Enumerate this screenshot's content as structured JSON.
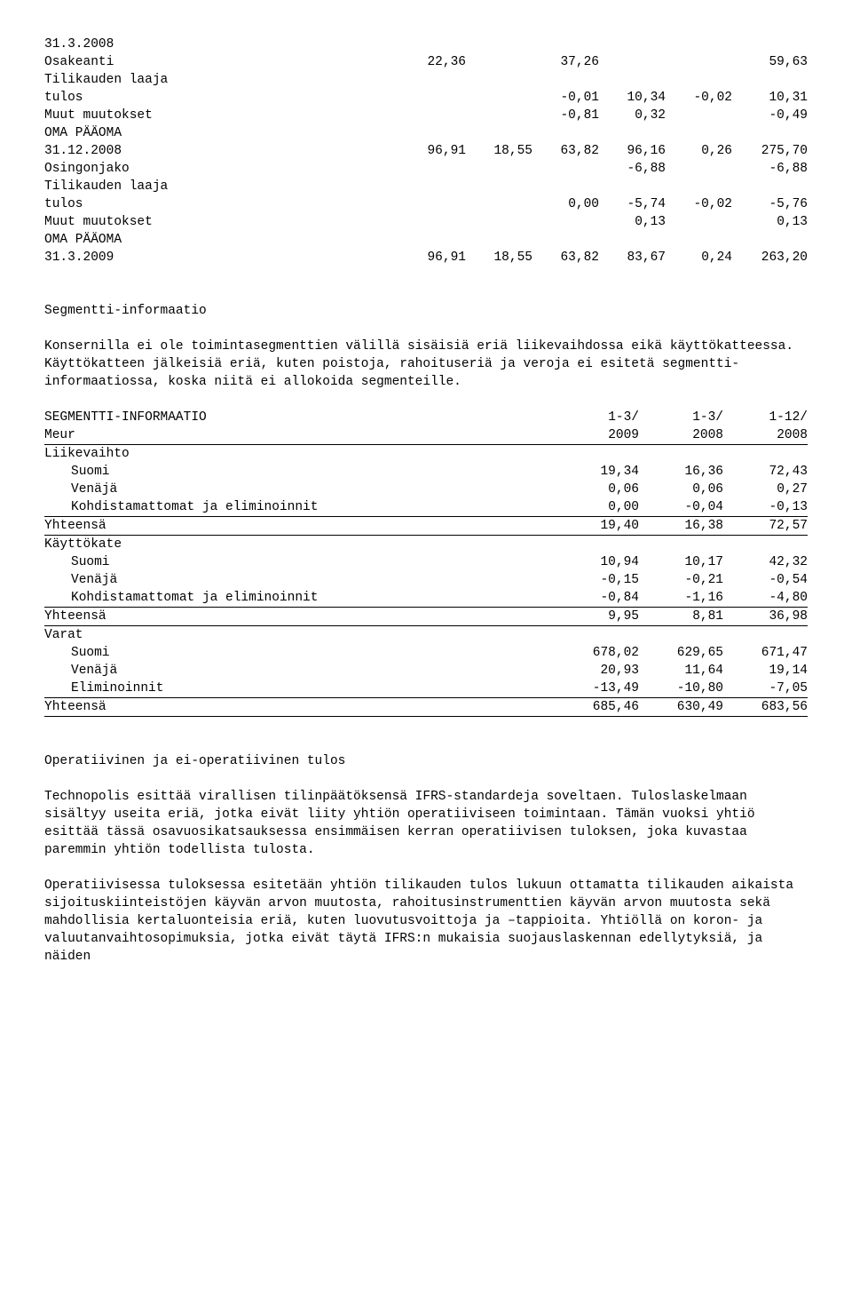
{
  "equity_table": {
    "col_count": 6,
    "rows": [
      {
        "label": "31.3.2008",
        "cells": [
          "",
          "",
          "",
          "",
          "",
          ""
        ]
      },
      {
        "label": "",
        "cells": [
          "",
          "",
          "",
          "",
          "",
          ""
        ]
      },
      {
        "label": "Osakeanti",
        "cells": [
          "22,36",
          "",
          "37,26",
          "",
          "",
          "59,63"
        ]
      },
      {
        "label": "Tilikauden laaja",
        "cells": [
          "",
          "",
          "",
          "",
          "",
          ""
        ]
      },
      {
        "label": "tulos",
        "cells": [
          "",
          "",
          "-0,01",
          "10,34",
          "-0,02",
          "10,31"
        ]
      },
      {
        "label": "Muut muutokset",
        "cells": [
          "",
          "",
          "-0,81",
          "0,32",
          "",
          "-0,49"
        ]
      },
      {
        "label": "OMA PÄÄOMA",
        "cells": [
          "",
          "",
          "",
          "",
          "",
          ""
        ]
      },
      {
        "label": "31.12.2008",
        "cells": [
          "96,91",
          "18,55",
          "63,82",
          "96,16",
          "0,26",
          "275,70"
        ]
      },
      {
        "label": "Osingonjako",
        "cells": [
          "",
          "",
          "",
          "-6,88",
          "",
          "-6,88"
        ]
      },
      {
        "label": "Tilikauden laaja",
        "cells": [
          "",
          "",
          "",
          "",
          "",
          ""
        ]
      },
      {
        "label": "tulos",
        "cells": [
          "",
          "",
          "0,00",
          "-5,74",
          "-0,02",
          "-5,76"
        ]
      },
      {
        "label": "Muut muutokset",
        "cells": [
          "",
          "",
          "",
          "0,13",
          "",
          "0,13"
        ]
      },
      {
        "label": "OMA PÄÄOMA",
        "cells": [
          "",
          "",
          "",
          "",
          "",
          ""
        ]
      },
      {
        "label": "31.3.2009",
        "cells": [
          "96,91",
          "18,55",
          "63,82",
          "83,67",
          "0,24",
          "263,20"
        ]
      }
    ]
  },
  "segment_heading": "Segmentti-informaatio",
  "segment_para": "Konsernilla ei ole toimintasegmenttien välillä sisäisiä eriä liikevaihdossa eikä käyttökatteessa. Käyttökatteen jälkeisiä eriä, kuten poistoja, rahoituseriä ja veroja ei esitetä segmentti-informaatiossa, koska niitä ei allokoida segmenteille.",
  "segment_table": {
    "header_a": {
      "label": " SEGMENTTI-INFORMAATIO",
      "cells": [
        "1-3/",
        "1-3/",
        "1-12/"
      ]
    },
    "header_b": {
      "label": "Meur",
      "cells": [
        "2009",
        "2008",
        "2008"
      ]
    },
    "groups": [
      {
        "title": "Liikevaihto",
        "rows": [
          {
            "label": "Suomi",
            "cells": [
              "19,34",
              "16,36",
              "72,43"
            ],
            "indent": true
          },
          {
            "label": "Venäjä",
            "cells": [
              "0,06",
              "0,06",
              "0,27"
            ],
            "indent": true
          },
          {
            "label": "Kohdistamattomat ja eliminoinnit",
            "cells": [
              "0,00",
              "-0,04",
              "-0,13"
            ],
            "indent": true
          }
        ],
        "total": {
          "label": "Yhteensä",
          "cells": [
            "19,40",
            "16,38",
            "72,57"
          ]
        }
      },
      {
        "title": "Käyttökate",
        "rows": [
          {
            "label": "Suomi",
            "cells": [
              "10,94",
              "10,17",
              "42,32"
            ],
            "indent": true
          },
          {
            "label": "Venäjä",
            "cells": [
              "-0,15",
              "-0,21",
              "-0,54"
            ],
            "indent": true
          },
          {
            "label": "Kohdistamattomat ja eliminoinnit",
            "cells": [
              "-0,84",
              "-1,16",
              "-4,80"
            ],
            "indent": true
          }
        ],
        "total": {
          "label": "Yhteensä",
          "cells": [
            "9,95",
            "8,81",
            "36,98"
          ]
        }
      },
      {
        "title": "Varat",
        "rows": [
          {
            "label": "Suomi",
            "cells": [
              "678,02",
              "629,65",
              "671,47"
            ],
            "indent": true
          },
          {
            "label": "Venäjä",
            "cells": [
              "20,93",
              "11,64",
              "19,14"
            ],
            "indent": true
          },
          {
            "label": "Eliminoinnit",
            "cells": [
              "-13,49",
              "-10,80",
              "-7,05"
            ],
            "indent": true
          }
        ],
        "total": {
          "label": "Yhteensä",
          "cells": [
            "685,46",
            "630,49",
            "683,56"
          ]
        }
      }
    ]
  },
  "operative_heading": "Operatiivinen ja ei-operatiivinen tulos",
  "operative_para1": "Technopolis esittää virallisen tilinpäätöksensä IFRS-standardeja soveltaen. Tuloslaskelmaan sisältyy useita eriä, jotka eivät liity yhtiön operatiiviseen toimintaan. Tämän vuoksi yhtiö esittää tässä osavuosikatsauksessa ensimmäisen kerran operatiivisen tuloksen, joka kuvastaa paremmin yhtiön todellista tulosta.",
  "operative_para2": "Operatiivisessa tuloksessa esitetään yhtiön tilikauden tulos lukuun ottamatta tilikauden aikaista sijoituskiinteistöjen käyvän arvon muutosta, rahoitusinstrumenttien käyvän arvon muutosta sekä mahdollisia kertaluonteisia eriä, kuten luovutusvoittoja ja –tappioita. Yhtiöllä on koron- ja valuutanvaihtosopimuksia, jotka eivät täytä IFRS:n mukaisia suojauslaskennan edellytyksiä, ja näiden"
}
